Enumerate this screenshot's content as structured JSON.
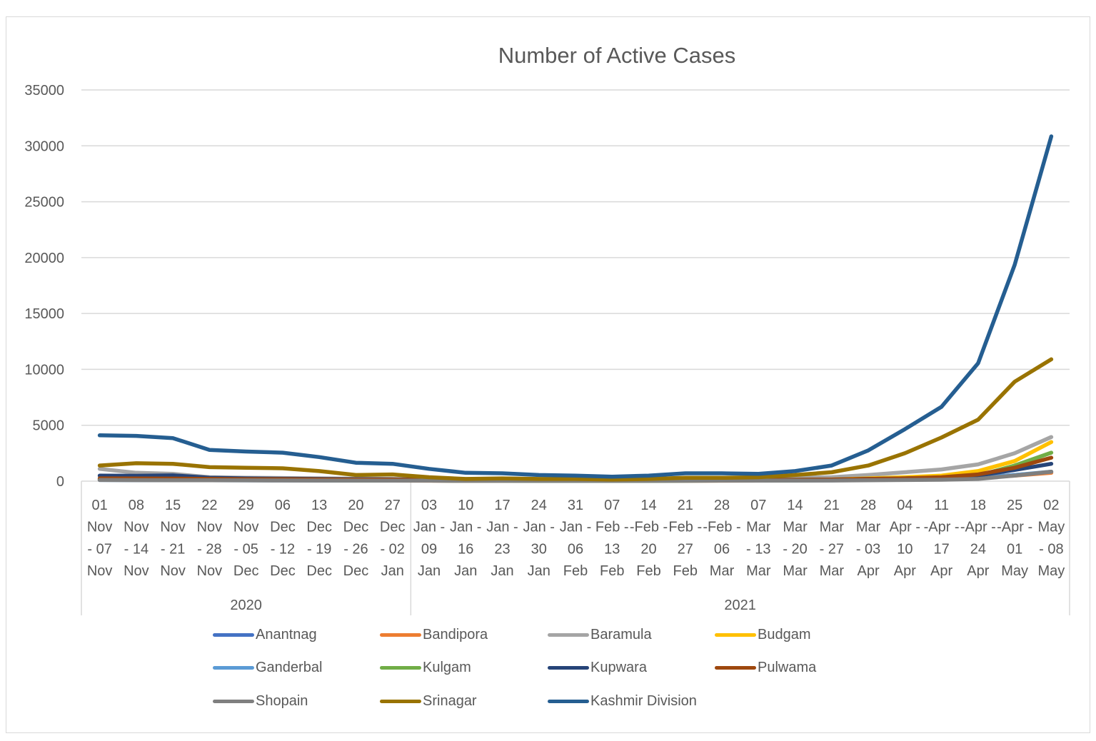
{
  "chart_data": {
    "type": "line",
    "title": "Number of Active Cases",
    "xlabel": "",
    "ylabel": "",
    "ylim": [
      0,
      35000
    ],
    "yticks": [
      0,
      5000,
      10000,
      15000,
      20000,
      25000,
      30000,
      35000
    ],
    "ytick_labels": [
      "0",
      "5000",
      "10000",
      "15000",
      "20000",
      "25000",
      "30000",
      "35000"
    ],
    "grid": true,
    "legend_position": "bottom",
    "categories": [
      [
        "01",
        "Nov",
        "- 07",
        "Nov"
      ],
      [
        "08",
        "Nov",
        "- 14",
        "Nov"
      ],
      [
        "15",
        "Nov",
        "- 21",
        "Nov"
      ],
      [
        "22",
        "Nov",
        "- 28",
        "Nov"
      ],
      [
        "29",
        "Nov",
        "- 05",
        "Dec"
      ],
      [
        "06",
        "Dec",
        "- 12",
        "Dec"
      ],
      [
        "13",
        "Dec",
        "- 19",
        "Dec"
      ],
      [
        "20",
        "Dec",
        "- 26",
        "Dec"
      ],
      [
        "27",
        "Dec",
        "- 02",
        "Jan"
      ],
      [
        "03",
        "Jan -",
        "09",
        "Jan"
      ],
      [
        "10",
        "Jan -",
        "16",
        "Jan"
      ],
      [
        "17",
        "Jan -",
        "23",
        "Jan"
      ],
      [
        "24",
        "Jan -",
        "30",
        "Jan"
      ],
      [
        "31",
        "Jan -",
        "06",
        "Feb"
      ],
      [
        "07",
        "Feb -",
        "13",
        "Feb"
      ],
      [
        "14",
        "-Feb -",
        "20",
        "Feb"
      ],
      [
        "21",
        "Feb -",
        "27",
        "Feb"
      ],
      [
        "28",
        "-Feb -",
        "06",
        "Mar"
      ],
      [
        "07",
        "Mar",
        "- 13",
        "Mar"
      ],
      [
        "14",
        "Mar",
        "- 20",
        "Mar"
      ],
      [
        "21",
        "Mar",
        "- 27",
        "Mar"
      ],
      [
        "28",
        "Mar",
        "- 03",
        "Apr"
      ],
      [
        "04",
        "Apr -",
        "10",
        "Apr"
      ],
      [
        "11",
        "-Apr -",
        "17",
        "Apr"
      ],
      [
        "18",
        "-Apr -",
        "24",
        "Apr"
      ],
      [
        "25",
        "-Apr -",
        "01",
        "May"
      ],
      [
        "02",
        "May",
        "- 08",
        "May"
      ]
    ],
    "category_groups": [
      {
        "label": "2020",
        "count": 9
      },
      {
        "label": "2021",
        "count": 18
      }
    ],
    "series": [
      {
        "name": "Anantnag",
        "color": "#4472c4",
        "values": [
          150,
          140,
          130,
          110,
          100,
          90,
          80,
          70,
          60,
          50,
          40,
          40,
          40,
          35,
          35,
          40,
          50,
          60,
          70,
          80,
          100,
          130,
          170,
          230,
          330,
          550,
          800
        ]
      },
      {
        "name": "Bandipora",
        "color": "#ed7d31",
        "values": [
          120,
          110,
          100,
          90,
          80,
          70,
          60,
          50,
          45,
          40,
          35,
          35,
          30,
          30,
          30,
          30,
          35,
          40,
          50,
          60,
          80,
          110,
          150,
          200,
          300,
          500,
          750
        ]
      },
      {
        "name": "Baramula",
        "color": "#a5a5a5",
        "values": [
          1100,
          750,
          650,
          350,
          300,
          280,
          250,
          220,
          200,
          150,
          120,
          120,
          110,
          100,
          100,
          110,
          150,
          200,
          250,
          300,
          350,
          550,
          800,
          1050,
          1500,
          2500,
          3950
        ]
      },
      {
        "name": "Budgam",
        "color": "#ffc000",
        "values": [
          200,
          180,
          170,
          150,
          140,
          130,
          120,
          110,
          100,
          80,
          70,
          70,
          60,
          60,
          60,
          60,
          70,
          80,
          100,
          120,
          150,
          250,
          350,
          500,
          900,
          1800,
          3500
        ]
      },
      {
        "name": "Ganderbal",
        "color": "#5b9bd5",
        "values": [
          100,
          90,
          85,
          80,
          70,
          65,
          60,
          55,
          50,
          45,
          40,
          40,
          35,
          35,
          35,
          35,
          40,
          45,
          50,
          60,
          70,
          100,
          140,
          200,
          300,
          550,
          850
        ]
      },
      {
        "name": "Kulgam",
        "color": "#70ad47",
        "values": [
          150,
          140,
          130,
          110,
          100,
          90,
          80,
          70,
          60,
          50,
          40,
          40,
          35,
          35,
          35,
          35,
          40,
          50,
          60,
          70,
          90,
          130,
          180,
          250,
          500,
          1400,
          2550
        ]
      },
      {
        "name": "Kupwara",
        "color": "#264478",
        "values": [
          500,
          480,
          520,
          300,
          250,
          220,
          200,
          180,
          160,
          120,
          100,
          100,
          90,
          90,
          90,
          90,
          100,
          110,
          120,
          130,
          150,
          200,
          250,
          300,
          500,
          1000,
          1550
        ]
      },
      {
        "name": "Pulwama",
        "color": "#9e480e",
        "values": [
          250,
          240,
          230,
          200,
          180,
          170,
          160,
          150,
          140,
          100,
          80,
          80,
          70,
          70,
          70,
          70,
          80,
          90,
          100,
          120,
          150,
          200,
          250,
          350,
          600,
          1200,
          2100
        ]
      },
      {
        "name": "Shopain",
        "color": "#7f7f7f",
        "values": [
          100,
          90,
          85,
          80,
          70,
          65,
          60,
          55,
          50,
          45,
          40,
          40,
          35,
          35,
          35,
          35,
          40,
          45,
          50,
          55,
          60,
          80,
          100,
          130,
          200,
          500,
          850
        ]
      },
      {
        "name": "Srinagar",
        "color": "#997300",
        "values": [
          1400,
          1600,
          1550,
          1250,
          1200,
          1150,
          900,
          550,
          600,
          350,
          200,
          250,
          200,
          200,
          150,
          200,
          300,
          300,
          350,
          550,
          800,
          1400,
          2500,
          3900,
          5500,
          8900,
          10900
        ]
      },
      {
        "name": "Kashmir Division",
        "color": "#255e91",
        "values": [
          4100,
          4050,
          3850,
          2800,
          2650,
          2550,
          2150,
          1650,
          1550,
          1100,
          750,
          700,
          550,
          500,
          400,
          500,
          700,
          700,
          650,
          900,
          1400,
          2750,
          4650,
          6650,
          10550,
          19350,
          30850
        ]
      }
    ]
  }
}
